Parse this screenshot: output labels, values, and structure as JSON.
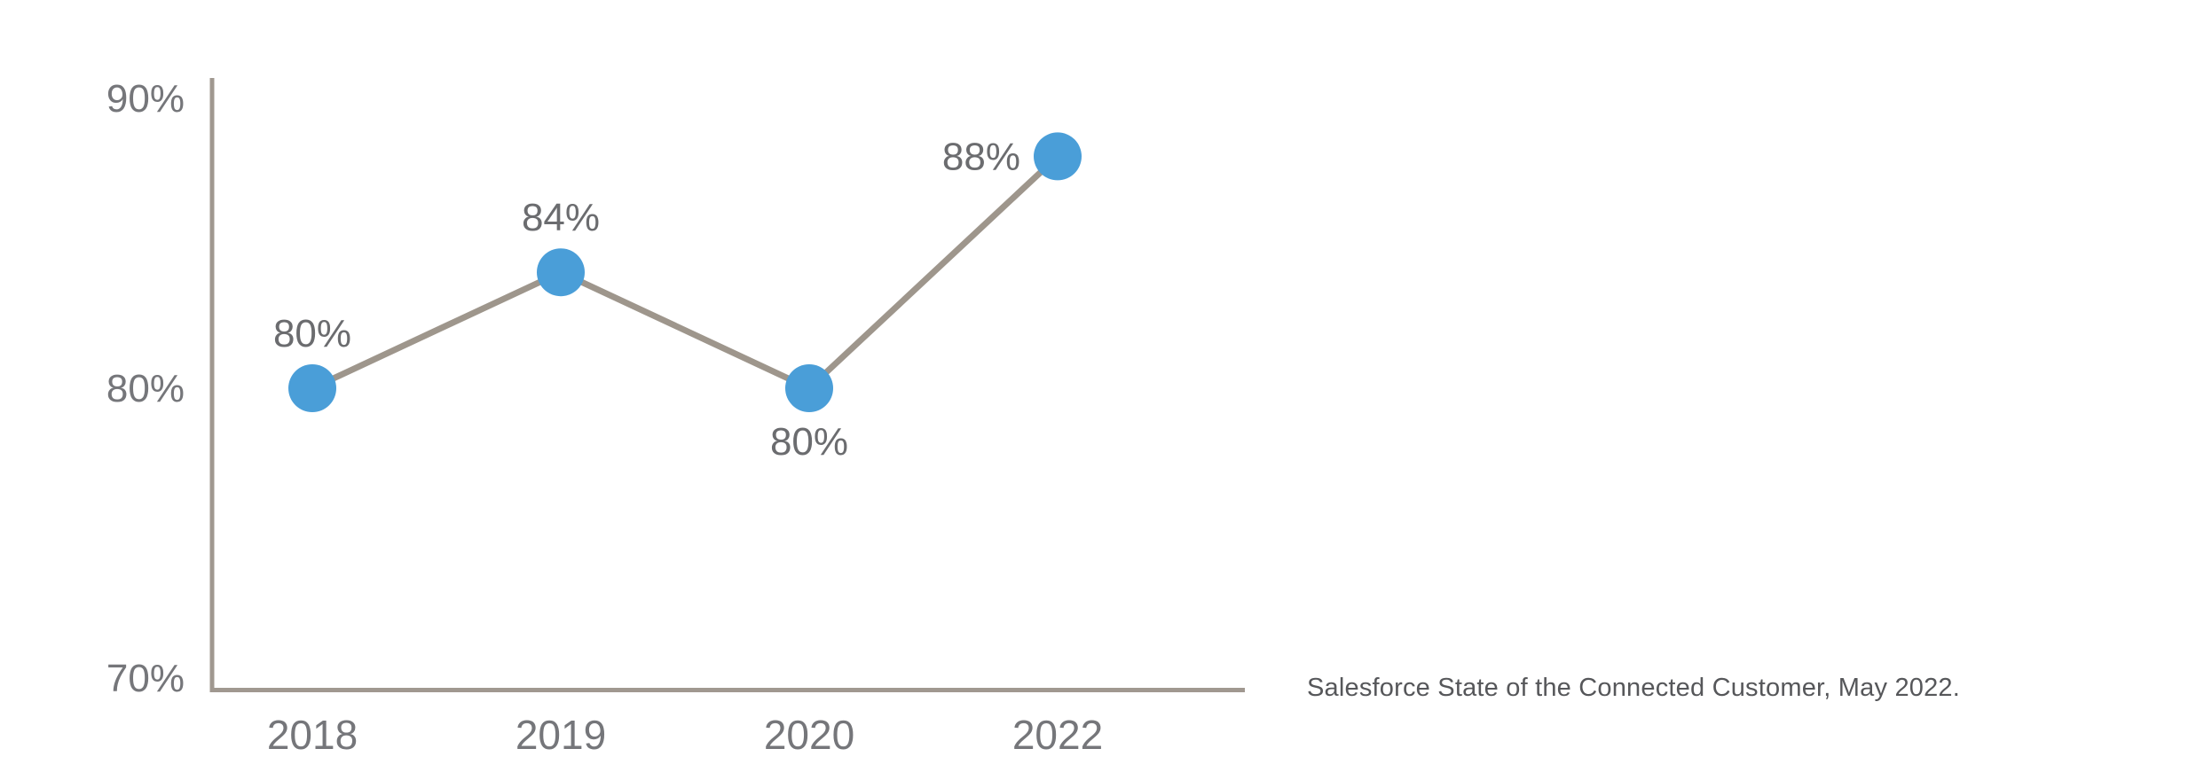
{
  "chart_data": {
    "type": "line",
    "categories": [
      "2018",
      "2019",
      "2020",
      "2022"
    ],
    "values": [
      80,
      84,
      80,
      88
    ],
    "point_labels": [
      "80%",
      "84%",
      "80%",
      "88%"
    ],
    "y_tick_labels": [
      "90%",
      "80%",
      "70%"
    ],
    "y_tick_values": [
      90,
      80,
      70
    ],
    "ylim": [
      70,
      90
    ],
    "grid": false,
    "legend": "none",
    "marker_color": "#4a9ed8",
    "line_color": "#9e968c",
    "axis_color": "#a09890",
    "tick_label_color": "#75767a",
    "point_label_color": "#6b6c6f",
    "label_placement": [
      "above",
      "above",
      "below",
      "left"
    ]
  },
  "caption": {
    "text": "Salesforce State of the Connected Customer, May 2022."
  }
}
